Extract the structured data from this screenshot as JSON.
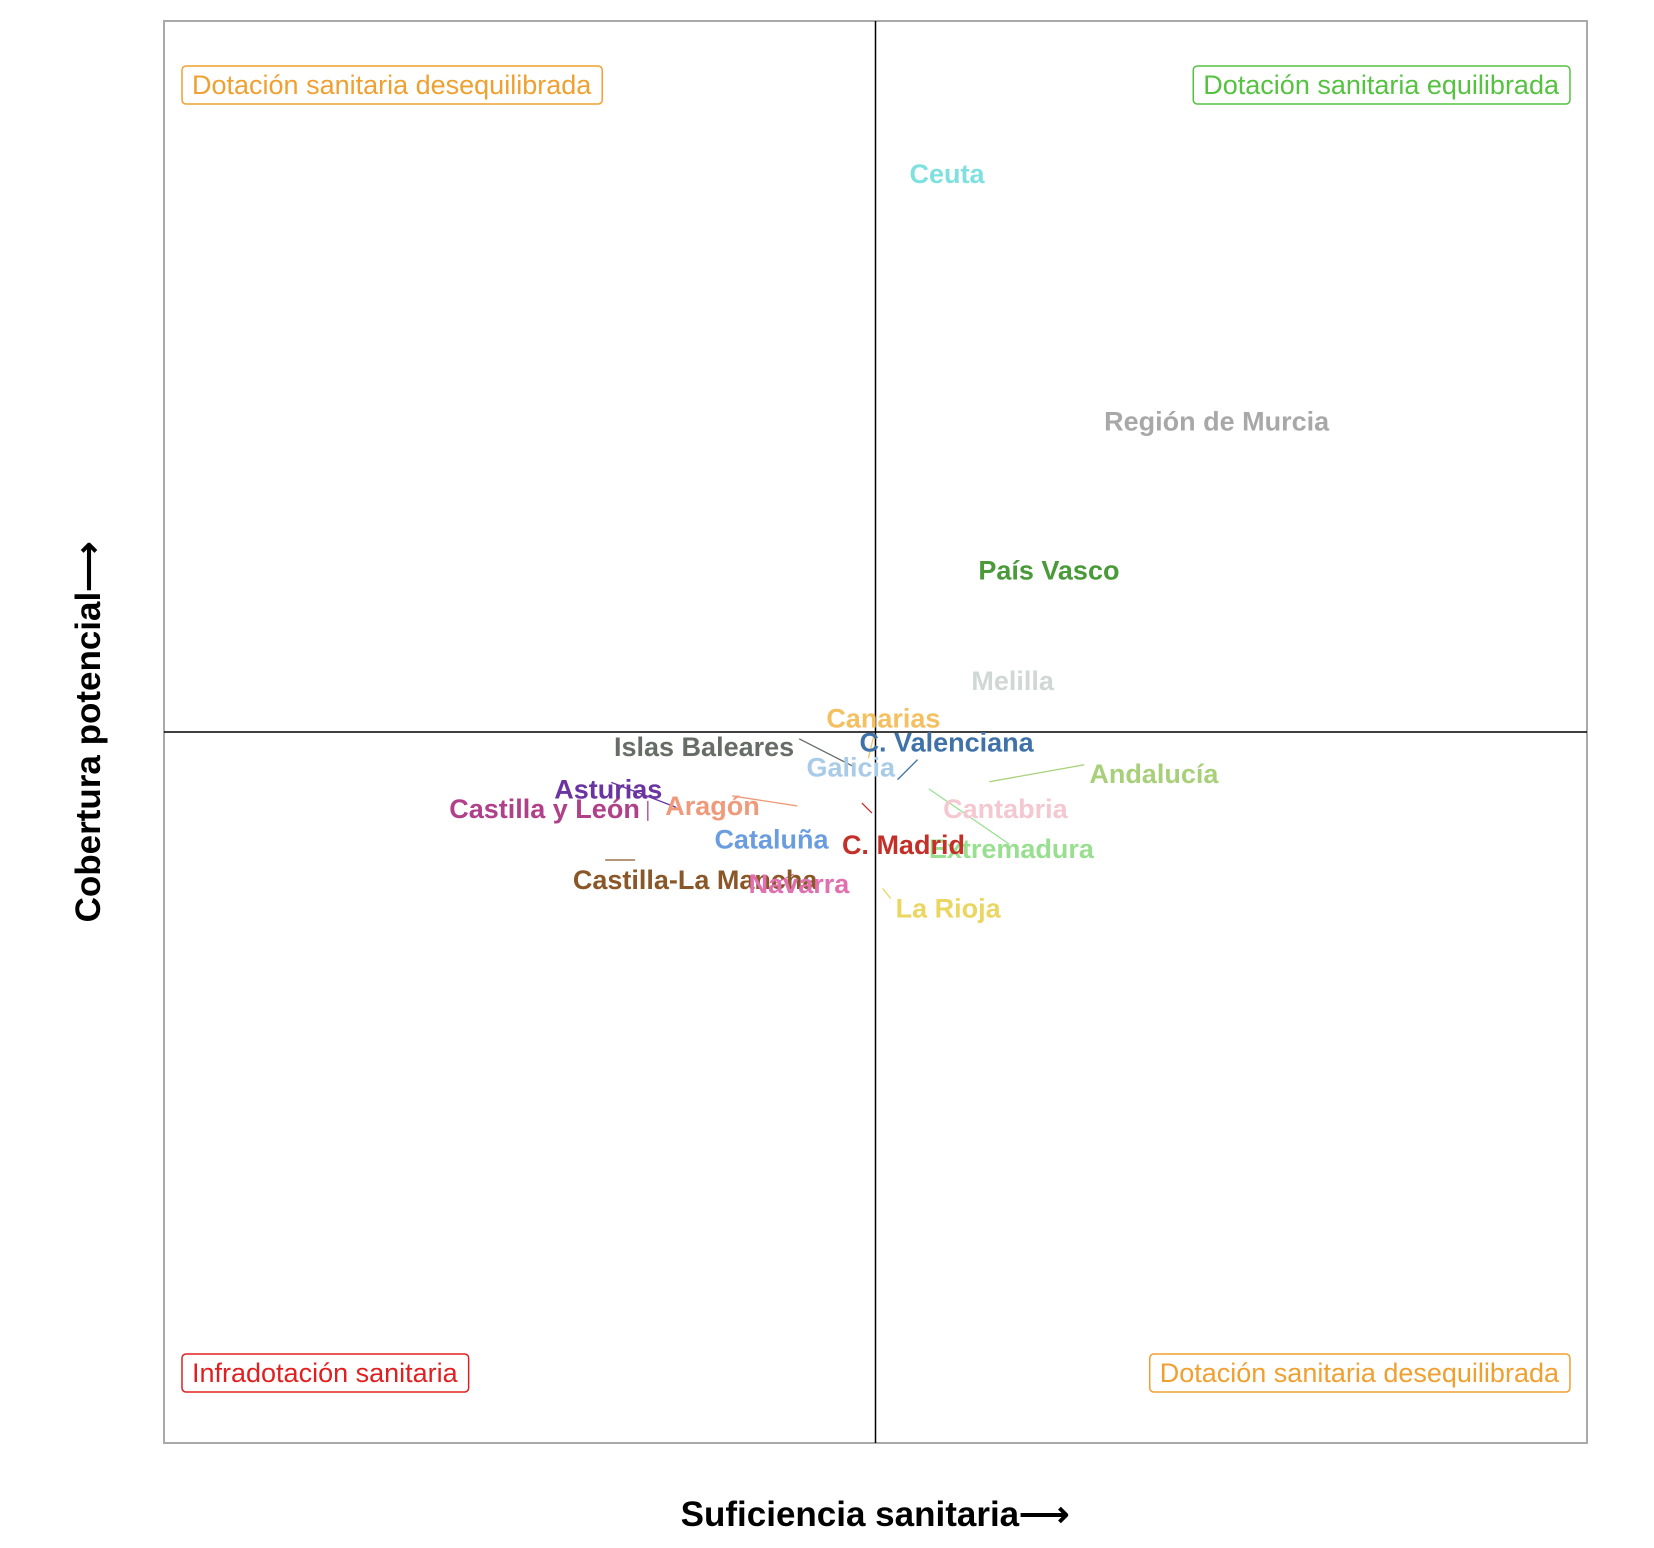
{
  "chart_data": {
    "type": "scatter",
    "xlabel": "Suficiencia sanitaria⟶",
    "ylabel": "Cobertura potencial⟶",
    "xlim": [
      -1,
      1
    ],
    "ylim": [
      -1,
      1
    ],
    "quadrant_labels": [
      {
        "text": "Dotación sanitaria desequilibrada",
        "position": "top-left",
        "color": "#f0a030"
      },
      {
        "text": "Dotación sanitaria equilibrada",
        "position": "top-right",
        "color": "#55c240"
      },
      {
        "text": "Infradotación sanitaria",
        "position": "bottom-left",
        "color": "#e02020"
      },
      {
        "text": "Dotación sanitaria desequilibrada",
        "position": "bottom-right",
        "color": "#f0a030"
      }
    ],
    "points": [
      {
        "name": "Ceuta",
        "x": 0.09,
        "y": 0.785,
        "color": "#7fe0e0"
      },
      {
        "name": "Región de Murcia",
        "x": 0.49,
        "y": 0.437,
        "color": "#a8a8a8"
      },
      {
        "name": "País Vasco",
        "x": 0.257,
        "y": 0.227,
        "color": "#4a9a3a"
      },
      {
        "name": "Melilla",
        "x": 0.198,
        "y": 0.072,
        "color": "#cfd8d5"
      },
      {
        "name": "Canarias",
        "x": -0.003,
        "y": -0.037,
        "color": "#f5c060"
      },
      {
        "name": "C. Valenciana",
        "x": 0.031,
        "y": -0.067,
        "color": "#3f72a8"
      },
      {
        "name": "Andalucía",
        "x": 0.16,
        "y": -0.07,
        "color": "#a8d07a"
      },
      {
        "name": "Islas Baleares",
        "x": -0.03,
        "y": -0.049,
        "color": "#666c66"
      },
      {
        "name": "Galicia",
        "x": -0.09,
        "y": -0.078,
        "color": "#a8cbe8"
      },
      {
        "name": "Aragón",
        "x": -0.11,
        "y": -0.104,
        "color": "#ef9a7a"
      },
      {
        "name": "Asturias",
        "x": -0.28,
        "y": -0.106,
        "color": "#6a35a0"
      },
      {
        "name": "Cantabria",
        "x": 0.095,
        "y": -0.07,
        "color": "#f4c8d0"
      },
      {
        "name": "Extremadura",
        "x": 0.075,
        "y": -0.08,
        "color": "#98e090"
      },
      {
        "name": "Castilla y León",
        "x": -0.32,
        "y": -0.125,
        "color": "#b0408a"
      },
      {
        "name": "Cataluña",
        "x": -0.09,
        "y": -0.14,
        "color": "#6a9ce0"
      },
      {
        "name": "C. Madrid",
        "x": -0.005,
        "y": -0.114,
        "color": "#c43028"
      },
      {
        "name": "Castilla-La Mancha",
        "x": -0.38,
        "y": -0.18,
        "color": "#8a5828"
      },
      {
        "name": "Navarra",
        "x": -0.115,
        "y": -0.2,
        "color": "#e070b0"
      },
      {
        "name": "La Rioja",
        "x": 0.01,
        "y": -0.22,
        "color": "#ead660"
      }
    ]
  }
}
